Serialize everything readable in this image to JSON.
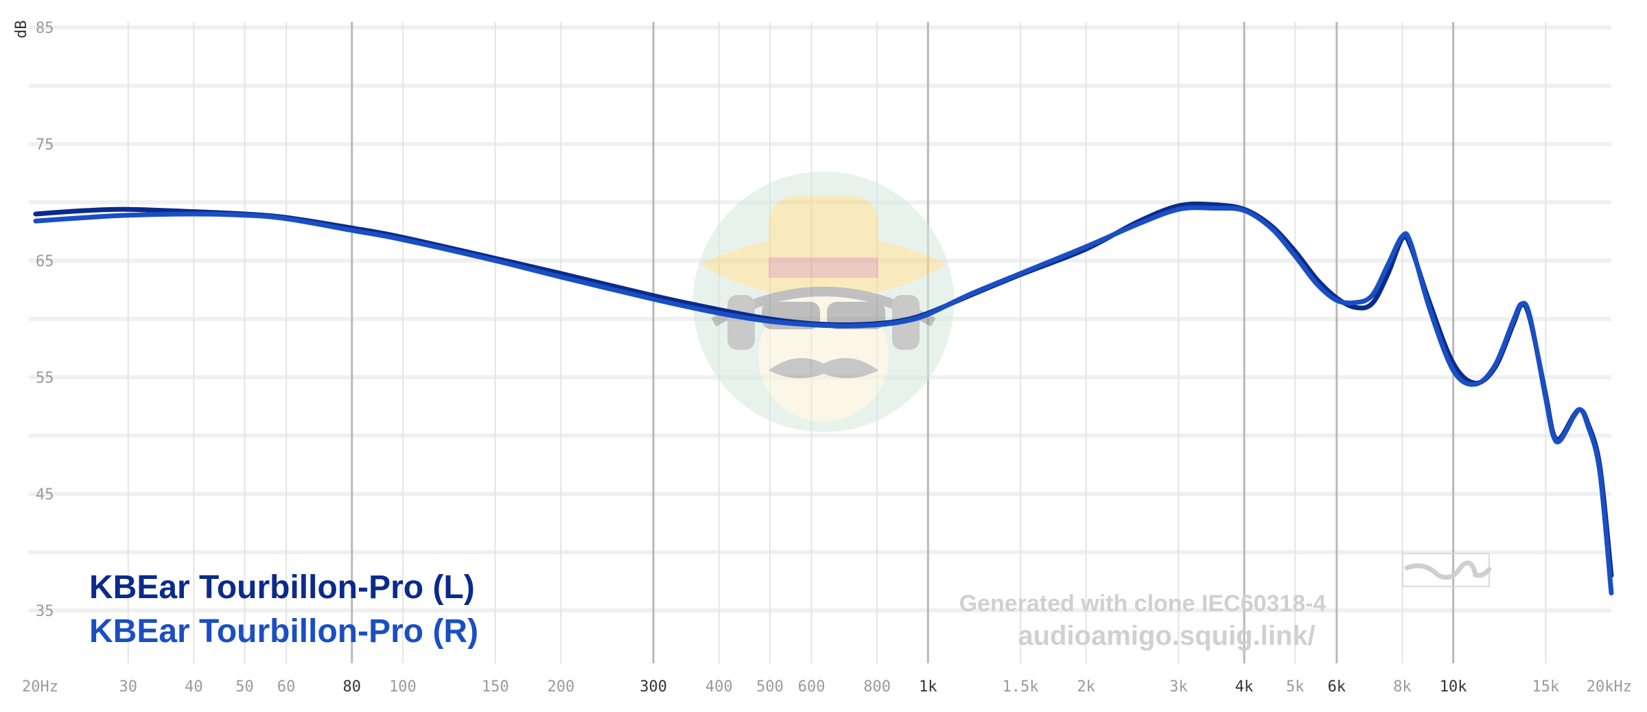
{
  "chart_data": {
    "type": "line",
    "ylabel": "dB",
    "xscale": "log",
    "xlim": [
      20,
      20000
    ],
    "ylim": [
      30,
      85
    ],
    "y_ticks": [
      85,
      75,
      65,
      55,
      45,
      35
    ],
    "x_ticks": [
      {
        "value": 20,
        "label": "20Hz",
        "major": false
      },
      {
        "value": 30,
        "label": "30",
        "major": false
      },
      {
        "value": 40,
        "label": "40",
        "major": false
      },
      {
        "value": 50,
        "label": "50",
        "major": false
      },
      {
        "value": 60,
        "label": "60",
        "major": false
      },
      {
        "value": 80,
        "label": "80",
        "major": true
      },
      {
        "value": 100,
        "label": "100",
        "major": false
      },
      {
        "value": 150,
        "label": "150",
        "major": false
      },
      {
        "value": 200,
        "label": "200",
        "major": false
      },
      {
        "value": 300,
        "label": "300",
        "major": true
      },
      {
        "value": 400,
        "label": "400",
        "major": false
      },
      {
        "value": 500,
        "label": "500",
        "major": false
      },
      {
        "value": 600,
        "label": "600",
        "major": false
      },
      {
        "value": 800,
        "label": "800",
        "major": false
      },
      {
        "value": 1000,
        "label": "1k",
        "major": true
      },
      {
        "value": 1500,
        "label": "1.5k",
        "major": false
      },
      {
        "value": 2000,
        "label": "2k",
        "major": false
      },
      {
        "value": 3000,
        "label": "3k",
        "major": false
      },
      {
        "value": 4000,
        "label": "4k",
        "major": true
      },
      {
        "value": 5000,
        "label": "5k",
        "major": false
      },
      {
        "value": 6000,
        "label": "6k",
        "major": true
      },
      {
        "value": 8000,
        "label": "8k",
        "major": false
      },
      {
        "value": 10000,
        "label": "10k",
        "major": true
      },
      {
        "value": 15000,
        "label": "15k",
        "major": false
      },
      {
        "value": 20000,
        "label": "20kHz",
        "major": false
      }
    ],
    "series": [
      {
        "name": "KBEar Tourbillon-Pro (L)",
        "color": "#0a2a8c",
        "points": [
          [
            20,
            69.0
          ],
          [
            25,
            69.3
          ],
          [
            30,
            69.4
          ],
          [
            40,
            69.2
          ],
          [
            50,
            69.0
          ],
          [
            60,
            68.7
          ],
          [
            80,
            67.8
          ],
          [
            100,
            67.0
          ],
          [
            150,
            65.2
          ],
          [
            200,
            63.9
          ],
          [
            300,
            62.0
          ],
          [
            400,
            60.8
          ],
          [
            500,
            60.0
          ],
          [
            600,
            59.6
          ],
          [
            700,
            59.5
          ],
          [
            800,
            59.6
          ],
          [
            900,
            59.9
          ],
          [
            1000,
            60.5
          ],
          [
            1200,
            62.0
          ],
          [
            1500,
            63.8
          ],
          [
            2000,
            66.0
          ],
          [
            2500,
            68.3
          ],
          [
            3000,
            69.7
          ],
          [
            3500,
            69.8
          ],
          [
            4000,
            69.4
          ],
          [
            4500,
            68.0
          ],
          [
            5000,
            65.8
          ],
          [
            5500,
            63.4
          ],
          [
            6000,
            61.8
          ],
          [
            6500,
            61.0
          ],
          [
            7000,
            61.3
          ],
          [
            7500,
            63.8
          ],
          [
            8000,
            66.9
          ],
          [
            8300,
            66.2
          ],
          [
            9000,
            61.5
          ],
          [
            10000,
            56.2
          ],
          [
            11000,
            54.5
          ],
          [
            12000,
            55.8
          ],
          [
            13000,
            59.5
          ],
          [
            13500,
            61.2
          ],
          [
            14000,
            60.0
          ],
          [
            15000,
            53.5
          ],
          [
            15500,
            50.2
          ],
          [
            16000,
            49.8
          ],
          [
            17000,
            51.8
          ],
          [
            17500,
            52.2
          ],
          [
            18000,
            51.2
          ],
          [
            19000,
            47.5
          ],
          [
            20000,
            38.0
          ]
        ]
      },
      {
        "name": "KBEar Tourbillon-Pro (R)",
        "color": "#1a4fc4",
        "points": [
          [
            20,
            68.4
          ],
          [
            25,
            68.7
          ],
          [
            30,
            68.9
          ],
          [
            40,
            69.0
          ],
          [
            50,
            68.9
          ],
          [
            60,
            68.6
          ],
          [
            80,
            67.6
          ],
          [
            100,
            66.8
          ],
          [
            150,
            65.0
          ],
          [
            200,
            63.6
          ],
          [
            300,
            61.7
          ],
          [
            400,
            60.5
          ],
          [
            500,
            59.8
          ],
          [
            600,
            59.5
          ],
          [
            700,
            59.4
          ],
          [
            800,
            59.5
          ],
          [
            900,
            59.8
          ],
          [
            1000,
            60.4
          ],
          [
            1200,
            62.1
          ],
          [
            1500,
            63.9
          ],
          [
            2000,
            66.2
          ],
          [
            2500,
            68.1
          ],
          [
            3000,
            69.4
          ],
          [
            3500,
            69.5
          ],
          [
            4000,
            69.3
          ],
          [
            4500,
            67.8
          ],
          [
            5000,
            65.4
          ],
          [
            5500,
            63.0
          ],
          [
            6000,
            61.6
          ],
          [
            6500,
            61.4
          ],
          [
            7000,
            62.0
          ],
          [
            7500,
            64.6
          ],
          [
            8000,
            67.1
          ],
          [
            8300,
            66.5
          ],
          [
            9000,
            61.0
          ],
          [
            10000,
            55.6
          ],
          [
            11000,
            54.4
          ],
          [
            12000,
            56.0
          ],
          [
            13000,
            59.8
          ],
          [
            13500,
            61.3
          ],
          [
            14000,
            60.2
          ],
          [
            15000,
            53.2
          ],
          [
            15500,
            50.0
          ],
          [
            16000,
            49.6
          ],
          [
            17000,
            51.7
          ],
          [
            17500,
            52.2
          ],
          [
            18000,
            51.0
          ],
          [
            19000,
            47.0
          ],
          [
            20000,
            36.5
          ]
        ]
      }
    ],
    "watermark": {
      "line1": "Generated with clone IEC60318-4",
      "line2": "audioamigo.squig.link/"
    }
  }
}
